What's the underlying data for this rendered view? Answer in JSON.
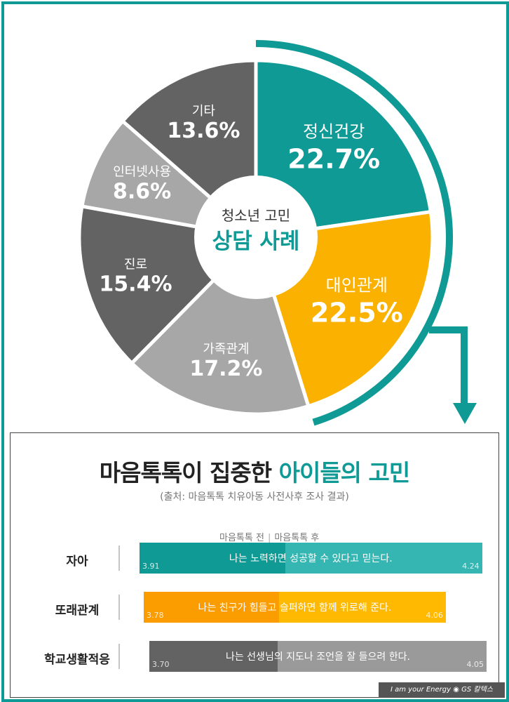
{
  "colors": {
    "teal": "#0f9a95",
    "teal_light": "#36b6b2",
    "orange": "#fbb100",
    "orange_light": "#ffb900",
    "dark_gray": "#636363",
    "mid_gray": "#8c8c8c",
    "light_gray": "#a7a7a7"
  },
  "chart_data": [
    {
      "type": "pie",
      "center_line1": "청소년 고민",
      "center_line2": "상담 사례",
      "slices": [
        {
          "label": "정신건강",
          "value": 22.7,
          "value_label": "22.7%",
          "color": "#0f9a95"
        },
        {
          "label": "대인관계",
          "value": 22.5,
          "value_label": "22.5%",
          "color": "#fbb100"
        },
        {
          "label": "가족관계",
          "value": 17.2,
          "value_label": "17.2%",
          "color": "#a7a7a7"
        },
        {
          "label": "진로",
          "value": 15.4,
          "value_label": "15.4%",
          "color": "#636363"
        },
        {
          "label": "인터넷사용",
          "value": 8.6,
          "value_label": "8.6%",
          "color": "#a7a7a7"
        },
        {
          "label": "기타",
          "value": 13.6,
          "value_label": "13.6%",
          "color": "#636363"
        }
      ]
    },
    {
      "type": "bar",
      "title_part1": "마음톡톡이 집중한 ",
      "title_part2": "아이들의 고민",
      "subtitle": "(출처: 마음톡톡 치유아동 사전사후 조사 결과)",
      "legend_before": "마음톡톡 전",
      "legend_after": "마음톡톡 후",
      "legend_sep": "|",
      "rows": [
        {
          "category": "자아",
          "statement": "나는 노력하면 성공할 수 있다고 믿는다.",
          "before": 3.91,
          "after": 4.24,
          "before_label": "3.91",
          "after_label": "4.24",
          "color_before": "#0f9a95",
          "color_after": "#36b6b2"
        },
        {
          "category": "또래관계",
          "statement": "나는 친구가 힘들고 슬퍼하면 함께 위로해 준다.",
          "before": 3.78,
          "after": 4.06,
          "before_label": "3.78",
          "after_label": "4.06",
          "color_before": "#fb9c00",
          "color_after": "#ffb900"
        },
        {
          "category": "학교생활적응",
          "statement": "나는 선생님의 지도나 조언을 잘 들으려 한다.",
          "before": 3.7,
          "after": 4.05,
          "before_label": "3.70",
          "after_label": "4.05",
          "color_before": "#636363",
          "color_after": "#9a9a9a"
        }
      ]
    }
  ],
  "footer": {
    "tagline": "I am your Energy",
    "brand": "GS 칼텍스"
  }
}
